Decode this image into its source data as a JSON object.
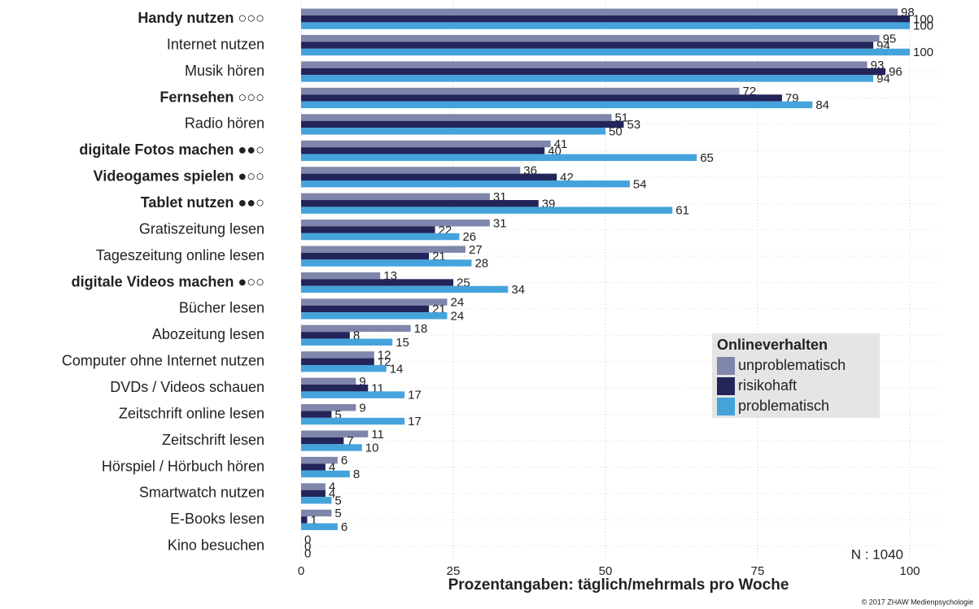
{
  "chart_data": {
    "type": "hbar",
    "categories": [
      "Handy nutzen ○○○",
      "Internet nutzen",
      "Musik hören",
      "Fernsehen ○○○",
      "Radio hören",
      "digitale Fotos machen ●●○",
      "Videogames spielen ●○○",
      "Tablet nutzen ●●○",
      "Gratiszeitung lesen",
      "Tageszeitung online lesen",
      "digitale Videos machen ●○○",
      "Bücher lesen",
      "Abozeitung lesen",
      "Computer ohne Internet nutzen",
      "DVDs / Videos schauen",
      "Zeitschrift online lesen",
      "Zeitschrift lesen",
      "Hörspiel / Hörbuch hören",
      "Smartwatch nutzen",
      "E-Books lesen",
      "Kino besuchen"
    ],
    "bold_categories": [
      true,
      false,
      false,
      true,
      false,
      true,
      true,
      true,
      false,
      false,
      true,
      false,
      false,
      false,
      false,
      false,
      false,
      false,
      false,
      false,
      false
    ],
    "series": [
      {
        "name": "unproblematisch",
        "color": "#7f86ab",
        "values": [
          98,
          95,
          93,
          72,
          51,
          41,
          36,
          31,
          31,
          27,
          13,
          24,
          18,
          12,
          9,
          9,
          11,
          6,
          4,
          5,
          0
        ]
      },
      {
        "name": "risikohaft",
        "color": "#23255a",
        "values": [
          100,
          94,
          96,
          79,
          53,
          40,
          42,
          39,
          22,
          21,
          25,
          21,
          8,
          12,
          11,
          5,
          7,
          4,
          4,
          1,
          0
        ]
      },
      {
        "name": "problematisch",
        "color": "#45a3dc",
        "values": [
          100,
          100,
          94,
          84,
          50,
          65,
          54,
          61,
          26,
          28,
          34,
          24,
          15,
          14,
          17,
          17,
          10,
          8,
          5,
          6,
          0
        ]
      }
    ],
    "xlim": [
      0,
      100
    ],
    "xticks": [
      0,
      25,
      50,
      75,
      100
    ],
    "xlabel": "Prozentangaben: täglich/mehrmals pro Woche",
    "legend_title": "Onlineverhalten",
    "annotations": [
      "N : 1040",
      "© 2017 ZHAW Medienpsychologie"
    ],
    "grid": true
  }
}
